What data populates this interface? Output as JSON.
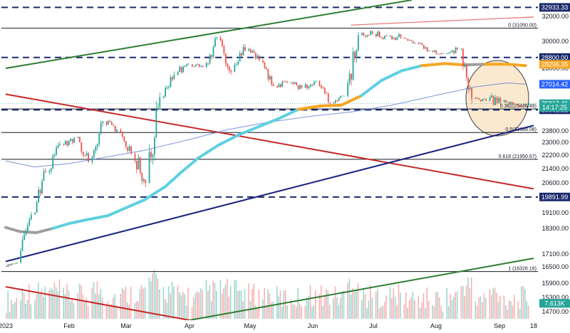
{
  "chart_data": {
    "type": "candlestick",
    "title": "",
    "xlabel": "",
    "ylabel": "",
    "ylim": [
      14300,
      33700
    ],
    "x_range": [
      "2023-01-01",
      "2023-09-18"
    ],
    "grid": false,
    "y_ticks": [
      32000,
      30000,
      28000,
      25800,
      23800,
      23000,
      22200,
      21400,
      20600,
      19100,
      18300,
      17100,
      16500,
      15900,
      15300,
      14700
    ],
    "x_ticks": [
      {
        "date": "2023-01-01",
        "label": "2023"
      },
      {
        "date": "2023-02-01",
        "label": "Feb"
      },
      {
        "date": "2023-03-01",
        "label": "Mar"
      },
      {
        "date": "2023-04-01",
        "label": "Apr"
      },
      {
        "date": "2023-05-01",
        "label": "May"
      },
      {
        "date": "2023-06-01",
        "label": "Jun"
      },
      {
        "date": "2023-07-01",
        "label": "Jul"
      },
      {
        "date": "2023-08-01",
        "label": "Aug"
      },
      {
        "date": "2023-09-01",
        "label": "Sep"
      },
      {
        "date": "2023-09-18",
        "label": "18"
      }
    ],
    "horizontal_levels": [
      {
        "value": 32933.33,
        "label": "32933.33",
        "style": "dashed",
        "color": "#1a2a6c"
      },
      {
        "value": 28800.0,
        "label": "28800.00",
        "style": "dashed",
        "color": "#1a2a6c"
      },
      {
        "value": 25362.22,
        "label": "25362.22",
        "style": "dashed",
        "color": "#1a2a6c"
      },
      {
        "value": 19891.99,
        "label": "19891.99",
        "style": "dashed",
        "color": "#1a2a6c"
      }
    ],
    "fib_levels": [
      {
        "value": 31050.0,
        "label": "0 (31050.00)"
      },
      {
        "value": 25425.49,
        "label": "0.382(25425.49)"
      },
      {
        "value": 23688.08,
        "label": "0.5(23688.08)"
      },
      {
        "value": 21950.67,
        "label": "0.618 (21950.67)"
      },
      {
        "value": 16326.16,
        "label": "1 (16326.16)"
      }
    ],
    "price_tags": [
      {
        "value": 28296.35,
        "label": "28296.35",
        "color": "#f5a623"
      },
      {
        "value": 27014.42,
        "label": "27014.42",
        "color": "#2962ff"
      },
      {
        "value": 25813.46,
        "label": "25813.46",
        "color": "#26a69a"
      },
      {
        "value": 25550,
        "label": "14:17:25",
        "color": "#26a69a"
      },
      {
        "value": 15050,
        "label": "7.613K",
        "color": "#26a69a"
      }
    ],
    "trend_lines": [
      {
        "name": "",
        "color": "#2e7d32",
        "points": [
          [
            "2023-01-01",
            28000
          ],
          [
            "2023-07-20",
            33700
          ]
        ]
      },
      {
        "name": "",
        "color": "#c62828",
        "points": [
          [
            "2023-01-01",
            26400
          ],
          [
            "2023-09-18",
            20300
          ]
        ]
      },
      {
        "name": "",
        "color": "#1a237e",
        "points": [
          [
            "2023-01-01",
            16750
          ],
          [
            "2023-09-18",
            24200
          ]
        ]
      },
      {
        "name": "",
        "color": "#c62828",
        "points": [
          [
            "2023-01-01",
            15750
          ],
          [
            "2023-04-01",
            14300
          ]
        ]
      },
      {
        "name": "",
        "color": "#2e7d32",
        "points": [
          [
            "2023-04-01",
            14300
          ],
          [
            "2023-09-18",
            16900
          ]
        ]
      },
      {
        "name": "",
        "color": "#e57373",
        "points": [
          [
            "2023-06-20",
            31300
          ],
          [
            "2023-09-18",
            31950
          ]
        ]
      }
    ],
    "moving_average_fast": [
      [
        "2023-01-01",
        18350
      ],
      [
        "2023-01-08",
        18150
      ],
      [
        "2023-01-16",
        18100
      ],
      [
        "2023-01-24",
        18300
      ],
      [
        "2023-02-01",
        18550
      ],
      [
        "2023-02-10",
        18750
      ],
      [
        "2023-02-20",
        18950
      ],
      [
        "2023-03-01",
        19350
      ],
      [
        "2023-03-10",
        19750
      ],
      [
        "2023-03-20",
        20400
      ],
      [
        "2023-03-28",
        21200
      ],
      [
        "2023-04-05",
        22000
      ],
      [
        "2023-04-15",
        22800
      ],
      [
        "2023-04-25",
        23500
      ],
      [
        "2023-05-05",
        24100
      ],
      [
        "2023-05-15",
        24700
      ],
      [
        "2023-05-25",
        25400
      ],
      [
        "2023-06-05",
        25650
      ],
      [
        "2023-06-15",
        25700
      ],
      [
        "2023-06-25",
        26300
      ],
      [
        "2023-07-05",
        27250
      ],
      [
        "2023-07-15",
        27850
      ],
      [
        "2023-07-25",
        28200
      ],
      [
        "2023-08-05",
        28350
      ],
      [
        "2023-08-15",
        28250
      ],
      [
        "2023-08-25",
        28300
      ],
      [
        "2023-09-05",
        28300
      ],
      [
        "2023-09-14",
        28200
      ]
    ],
    "moving_average_slow": [
      [
        "2023-01-01",
        21850
      ],
      [
        "2023-01-15",
        21500
      ],
      [
        "2023-02-01",
        21700
      ],
      [
        "2023-02-20",
        22100
      ],
      [
        "2023-03-10",
        22500
      ],
      [
        "2023-04-01",
        23200
      ],
      [
        "2023-04-20",
        23900
      ],
      [
        "2023-05-10",
        24450
      ],
      [
        "2023-06-01",
        24900
      ],
      [
        "2023-06-20",
        25200
      ],
      [
        "2023-07-10",
        25700
      ],
      [
        "2023-07-31",
        26300
      ],
      [
        "2023-08-20",
        26850
      ],
      [
        "2023-09-05",
        27100
      ],
      [
        "2023-09-14",
        27014
      ]
    ],
    "candles_weekly": [
      {
        "date": "2023-01-01",
        "open": 16550,
        "high": 16800,
        "low": 16450,
        "close": 16700
      },
      {
        "date": "2023-01-08",
        "open": 16700,
        "high": 19200,
        "low": 16650,
        "close": 19000
      },
      {
        "date": "2023-01-15",
        "open": 19000,
        "high": 21600,
        "low": 19100,
        "close": 21200
      },
      {
        "date": "2023-01-22",
        "open": 21200,
        "high": 23800,
        "low": 21000,
        "close": 22900
      },
      {
        "date": "2023-01-29",
        "open": 22900,
        "high": 24100,
        "low": 22500,
        "close": 23300
      },
      {
        "date": "2023-02-05",
        "open": 23300,
        "high": 23400,
        "low": 21600,
        "close": 21800
      },
      {
        "date": "2023-02-12",
        "open": 21800,
        "high": 25000,
        "low": 21600,
        "close": 24500
      },
      {
        "date": "2023-02-19",
        "open": 24500,
        "high": 25200,
        "low": 23700,
        "close": 23900
      },
      {
        "date": "2023-02-26",
        "open": 23900,
        "high": 24100,
        "low": 22100,
        "close": 22300
      },
      {
        "date": "2023-03-05",
        "open": 22300,
        "high": 22400,
        "low": 19600,
        "close": 20600
      },
      {
        "date": "2023-03-12",
        "open": 20600,
        "high": 26500,
        "low": 20200,
        "close": 26200
      },
      {
        "date": "2023-03-19",
        "open": 26200,
        "high": 28800,
        "low": 26100,
        "close": 27600
      },
      {
        "date": "2023-03-26",
        "open": 27600,
        "high": 28700,
        "low": 26900,
        "close": 28300
      },
      {
        "date": "2023-04-02",
        "open": 28300,
        "high": 28600,
        "low": 27600,
        "close": 28100
      },
      {
        "date": "2023-04-09",
        "open": 28100,
        "high": 30900,
        "low": 28000,
        "close": 30300
      },
      {
        "date": "2023-04-16",
        "open": 30300,
        "high": 30500,
        "low": 27300,
        "close": 27800
      },
      {
        "date": "2023-04-23",
        "open": 27800,
        "high": 29900,
        "low": 27100,
        "close": 29300
      },
      {
        "date": "2023-04-30",
        "open": 29300,
        "high": 29700,
        "low": 27900,
        "close": 28600
      },
      {
        "date": "2023-05-07",
        "open": 28600,
        "high": 28700,
        "low": 26800,
        "close": 26900
      },
      {
        "date": "2023-05-14",
        "open": 26900,
        "high": 27700,
        "low": 26600,
        "close": 27100
      },
      {
        "date": "2023-05-21",
        "open": 27100,
        "high": 27300,
        "low": 26200,
        "close": 26800
      },
      {
        "date": "2023-05-28",
        "open": 26800,
        "high": 28400,
        "low": 26600,
        "close": 27200
      },
      {
        "date": "2023-06-04",
        "open": 27200,
        "high": 27300,
        "low": 25400,
        "close": 25900
      },
      {
        "date": "2023-06-11",
        "open": 25900,
        "high": 26300,
        "low": 24900,
        "close": 26300
      },
      {
        "date": "2023-06-18",
        "open": 26300,
        "high": 31100,
        "low": 26200,
        "close": 30500
      },
      {
        "date": "2023-06-25",
        "open": 30500,
        "high": 31300,
        "low": 29900,
        "close": 30600
      },
      {
        "date": "2023-07-02",
        "open": 30600,
        "high": 31400,
        "low": 29900,
        "close": 30400
      },
      {
        "date": "2023-07-09",
        "open": 30400,
        "high": 31800,
        "low": 30100,
        "close": 30300
      },
      {
        "date": "2023-07-16",
        "open": 30300,
        "high": 30400,
        "low": 29700,
        "close": 29900
      },
      {
        "date": "2023-07-23",
        "open": 29900,
        "high": 30000,
        "low": 29100,
        "close": 29300
      },
      {
        "date": "2023-07-30",
        "open": 29300,
        "high": 29600,
        "low": 28900,
        "close": 29100
      },
      {
        "date": "2023-08-06",
        "open": 29100,
        "high": 30200,
        "low": 28900,
        "close": 29400
      },
      {
        "date": "2023-08-13",
        "open": 29400,
        "high": 29500,
        "low": 25300,
        "close": 26100
      },
      {
        "date": "2023-08-20",
        "open": 26100,
        "high": 26400,
        "low": 25800,
        "close": 26000
      },
      {
        "date": "2023-08-27",
        "open": 26000,
        "high": 28200,
        "low": 25700,
        "close": 25900
      },
      {
        "date": "2023-09-03",
        "open": 25900,
        "high": 26100,
        "low": 25300,
        "close": 25800
      },
      {
        "date": "2023-09-10",
        "open": 25800,
        "high": 26100,
        "low": 24950,
        "close": 25813
      }
    ],
    "volume_ylim": [
      14300,
      16800
    ]
  }
}
